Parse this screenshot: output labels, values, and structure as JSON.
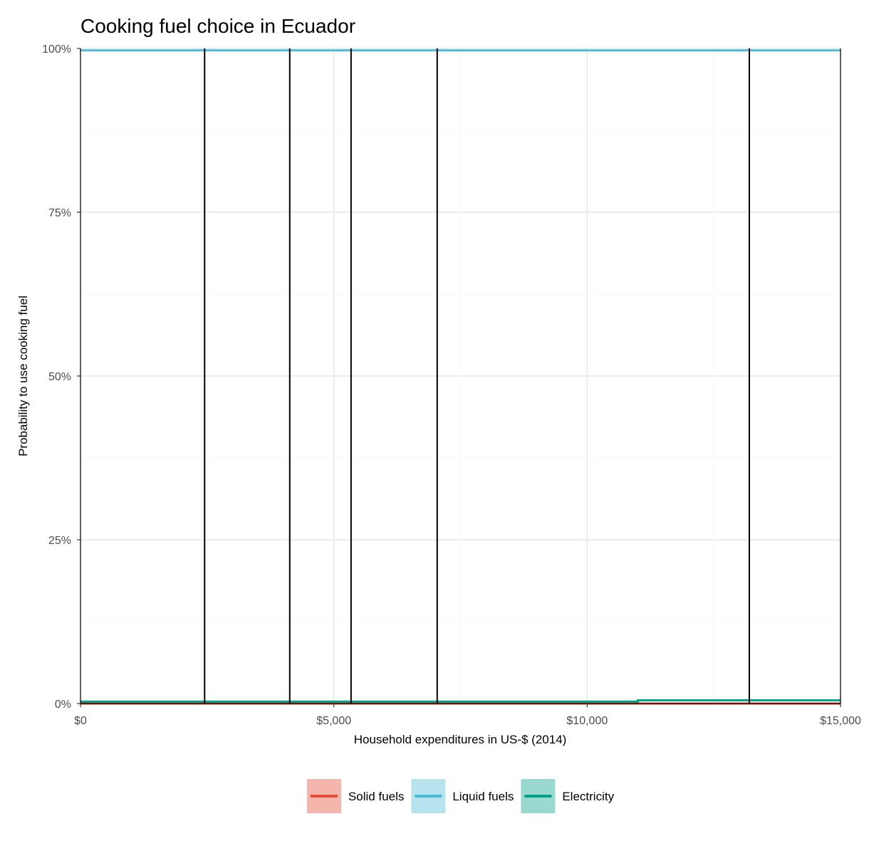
{
  "chart_data": {
    "type": "line",
    "title": "Cooking fuel choice in Ecuador",
    "xlabel": "Household expenditures in US-$ (2014)",
    "ylabel": "Probability to use cooking fuel",
    "xlim": [
      0,
      15000
    ],
    "ylim": [
      0,
      1
    ],
    "x_ticks": [
      0,
      5000,
      10000,
      15000
    ],
    "x_tick_labels": [
      "$0",
      "$5,000",
      "$10,000",
      "$15,000"
    ],
    "y_ticks": [
      0,
      0.25,
      0.5,
      0.75,
      1
    ],
    "y_tick_labels": [
      "0%",
      "25%",
      "50%",
      "75%",
      "100%"
    ],
    "grid": true,
    "legend_position": "bottom",
    "series": [
      {
        "name": "Solid fuels",
        "color": "#E64B35",
        "band_color": "#F4B6AC",
        "points": [
          [
            0,
            0.0
          ],
          [
            11000,
            0.0
          ],
          [
            15000,
            0.0
          ]
        ]
      },
      {
        "name": "Liquid fuels",
        "color": "#4DBBD5",
        "band_color": "#B7E3EE",
        "points": [
          [
            0,
            0.997
          ],
          [
            11000,
            0.997
          ],
          [
            15000,
            0.997
          ]
        ]
      },
      {
        "name": "Electricity",
        "color": "#00A087",
        "band_color": "#99D9CF",
        "points": [
          [
            0,
            0.003
          ],
          [
            11000,
            0.003
          ],
          [
            11000,
            0.005
          ],
          [
            15000,
            0.005
          ]
        ]
      }
    ],
    "vlines": [
      2450,
      4130,
      5340,
      7040,
      13200
    ],
    "vline_color": "#000000"
  }
}
